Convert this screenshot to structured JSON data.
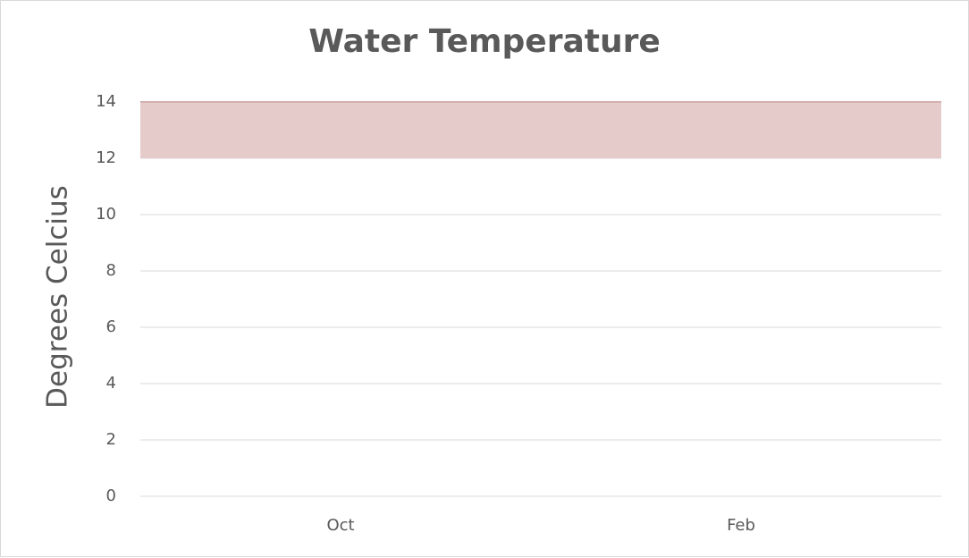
{
  "chart_data": {
    "type": "area",
    "title": "Water Temperature",
    "y_label": "Degrees Celcius",
    "categories": [
      "Oct",
      "Feb"
    ],
    "stacked": true,
    "series": [
      {
        "color": "none",
        "values": [
          12,
          12
        ]
      },
      {
        "color": "#e6cbcb",
        "values": [
          2,
          2
        ]
      }
    ],
    "ylim": [
      0,
      14
    ],
    "yticks": [
      0,
      2,
      4,
      6,
      8,
      10,
      12,
      14
    ],
    "grid": true
  }
}
